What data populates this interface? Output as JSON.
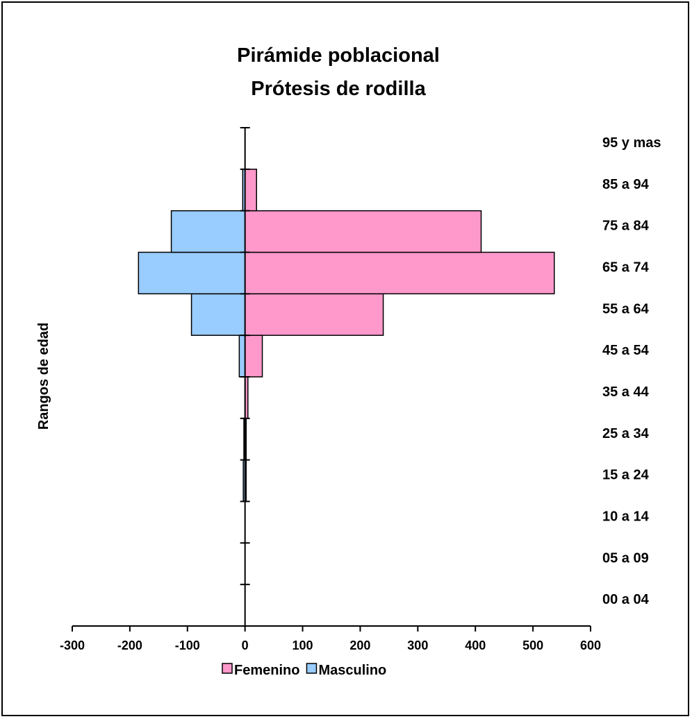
{
  "chart_data": {
    "type": "bar",
    "orientation": "horizontal",
    "title_lines": [
      "Pirámide poblacional",
      "Prótesis de rodilla"
    ],
    "ylabel": "Rangos de edad",
    "xlabel": "",
    "xlim": [
      -300,
      600
    ],
    "xticks": [
      -300,
      -200,
      -100,
      0,
      100,
      200,
      300,
      400,
      500,
      600
    ],
    "categories": [
      "00 a 04",
      "05 a 09",
      "10 a 14",
      "15 a 24",
      "25 a 34",
      "35 a 44",
      "45 a 54",
      "55 a 64",
      "65 a 74",
      "75 a 84",
      "85 a 94",
      "95 y mas"
    ],
    "series": [
      {
        "name": "Femenino",
        "color": "#FF99CC",
        "values": [
          0,
          0,
          0,
          2,
          2,
          5,
          30,
          240,
          537,
          410,
          20,
          0
        ]
      },
      {
        "name": "Masculino",
        "color": "#99CCFF",
        "values": [
          0,
          0,
          0,
          -3,
          -2,
          0,
          -10,
          -93,
          -185,
          -128,
          -4,
          0
        ]
      }
    ],
    "legend_position": "bottom",
    "grid": false
  }
}
